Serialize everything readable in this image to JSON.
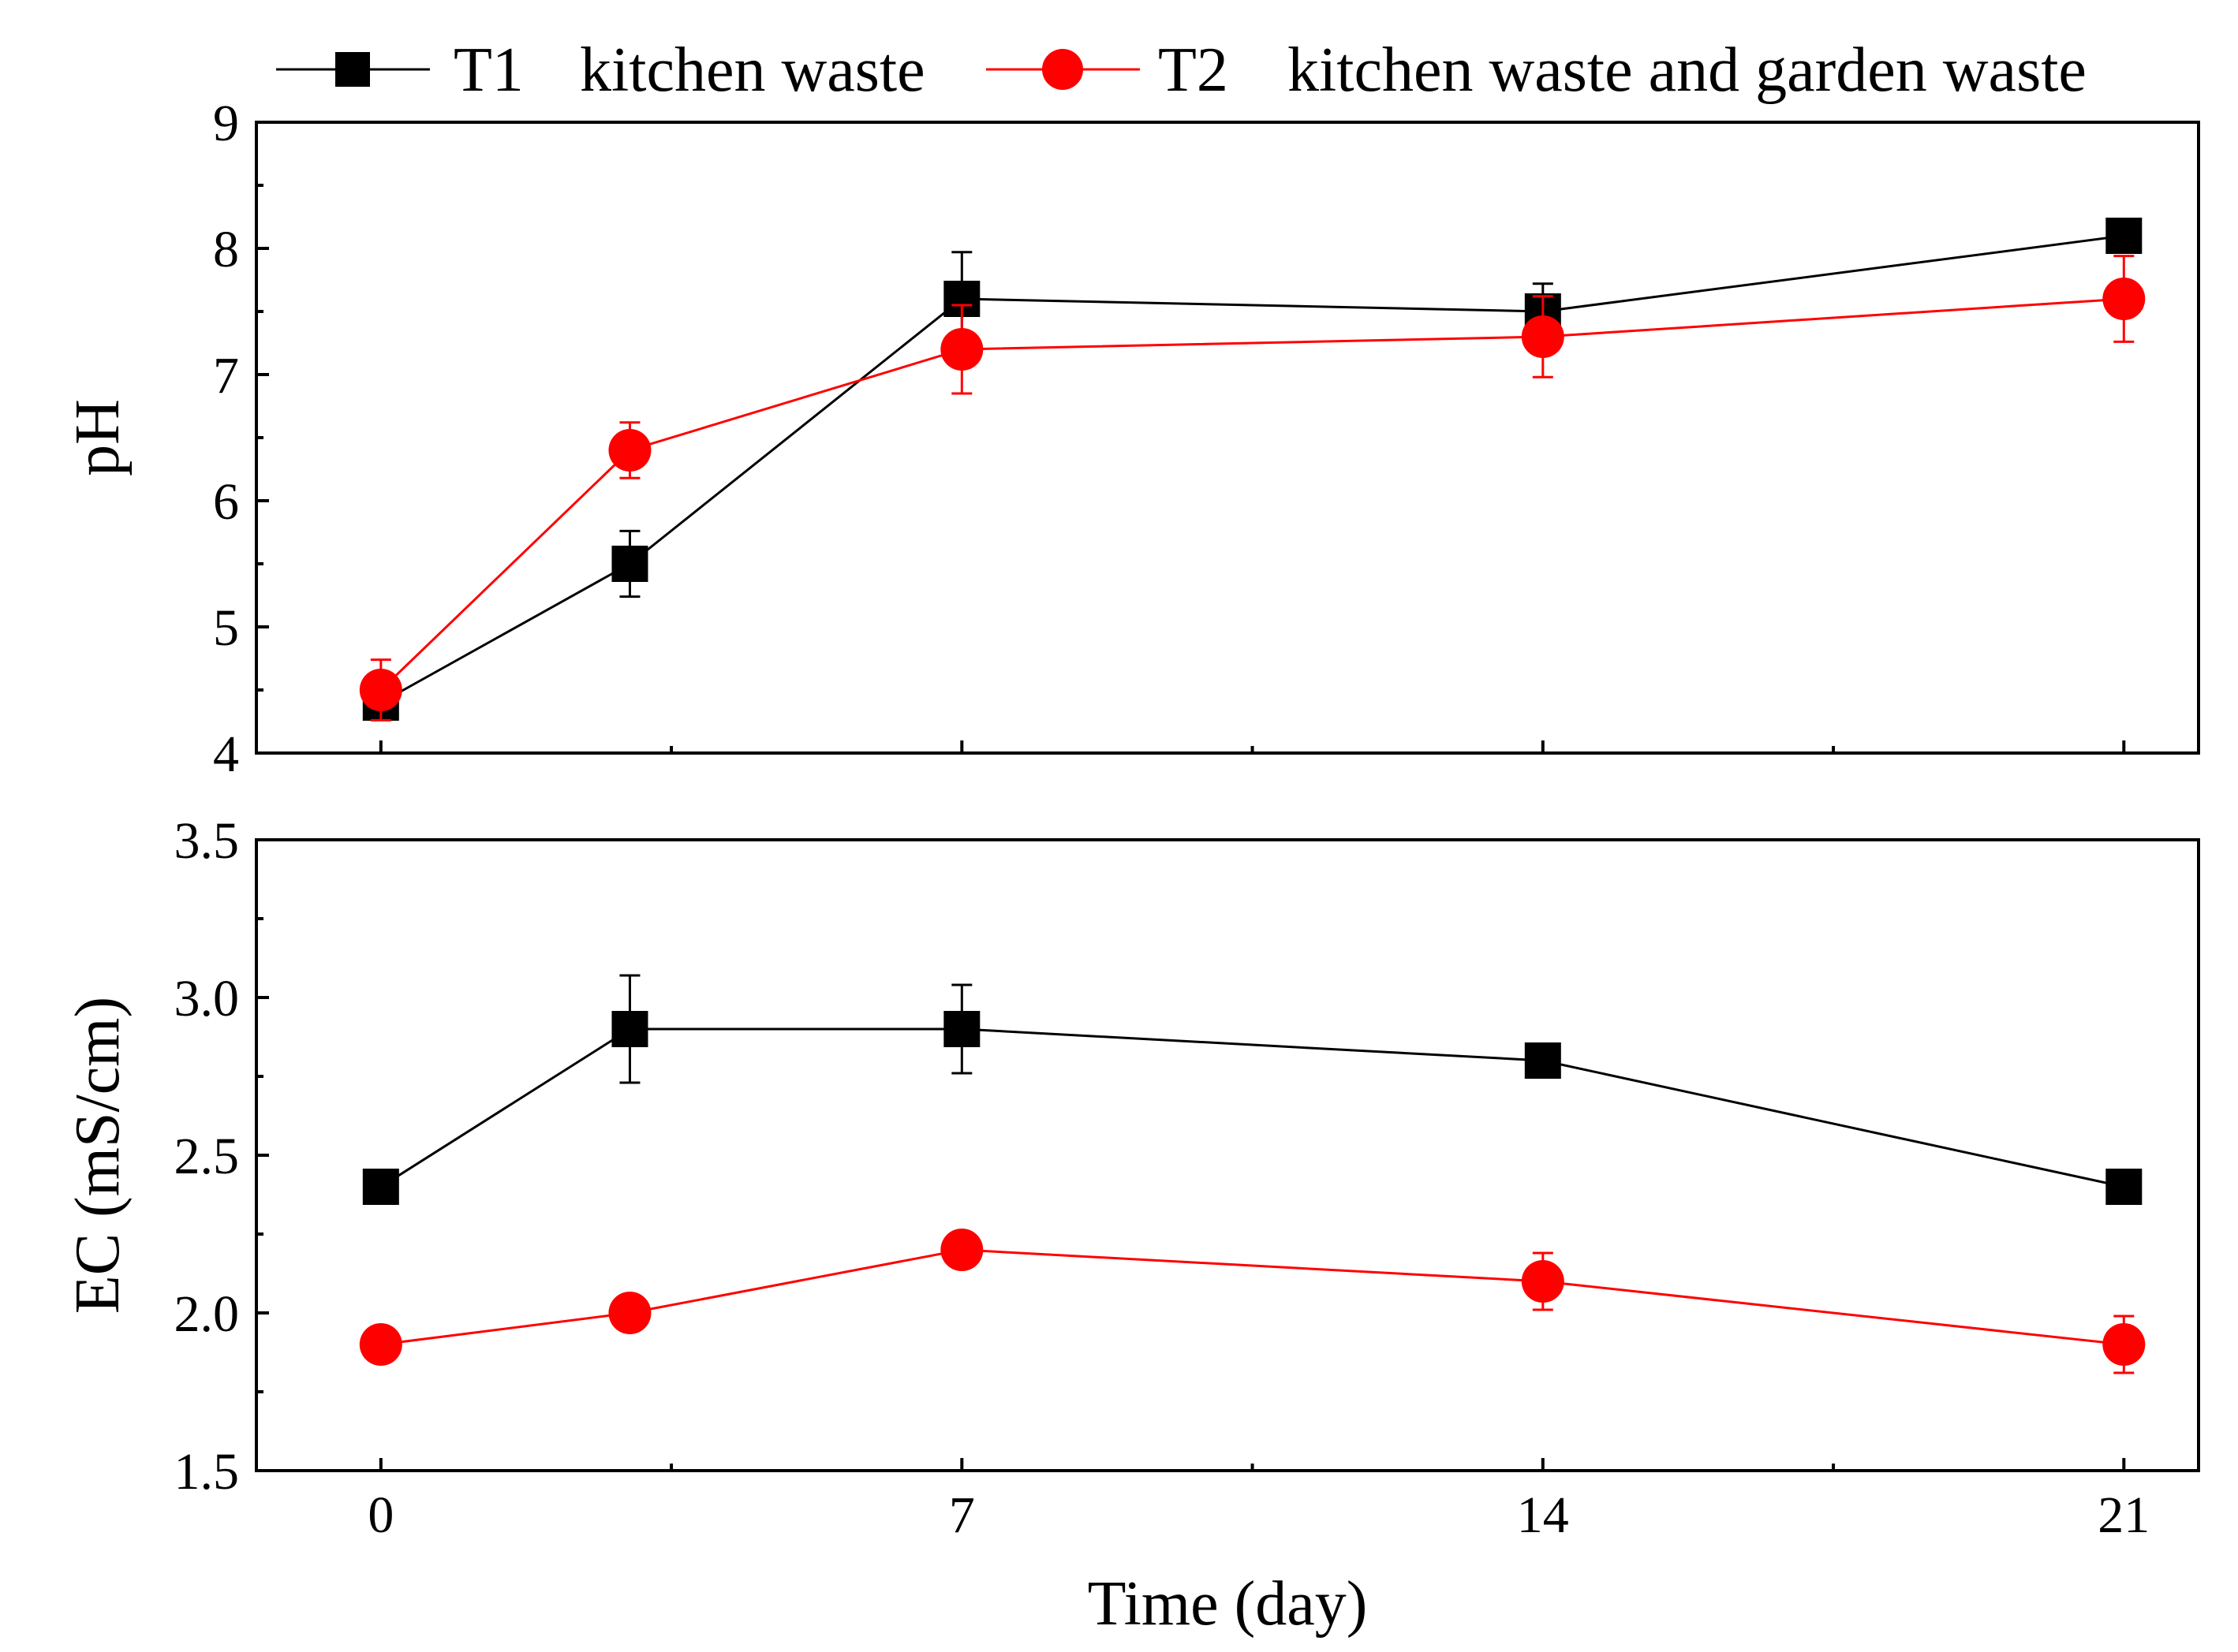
{
  "chart_data": [
    {
      "type": "line",
      "panel": "top",
      "title": "",
      "xlabel": "",
      "ylabel": "pH",
      "xlim": [
        -1.5,
        21.9
      ],
      "ylim": [
        4,
        9
      ],
      "xticks": [
        0,
        7,
        14,
        21
      ],
      "xtick_labels": [],
      "yticks": [
        4,
        5,
        6,
        7,
        8,
        9
      ],
      "ytick_labels": [
        "4",
        "5",
        "6",
        "7",
        "8",
        "9"
      ],
      "series": [
        {
          "name": "T1 kitchen waste",
          "color": "#000000",
          "marker": "square",
          "x": [
            0,
            3,
            7,
            14,
            21
          ],
          "values": [
            4.4,
            5.5,
            7.6,
            7.5,
            8.1
          ],
          "errors": [
            0.1,
            0.26,
            0.37,
            0.22,
            0.1
          ]
        },
        {
          "name": "T2 kitchen waste and garden waste",
          "color": "#ff0000",
          "marker": "circle",
          "x": [
            0,
            3,
            7,
            14,
            21
          ],
          "values": [
            4.5,
            6.4,
            7.2,
            7.3,
            7.6
          ],
          "errors": [
            0.24,
            0.22,
            0.35,
            0.32,
            0.34
          ]
        }
      ]
    },
    {
      "type": "line",
      "panel": "bottom",
      "title": "",
      "xlabel": "Time (day)",
      "ylabel": "EC (mS/cm)",
      "xlim": [
        -1.5,
        21.9
      ],
      "ylim": [
        1.5,
        3.5
      ],
      "xticks": [
        0,
        7,
        14,
        21
      ],
      "xtick_labels": [
        "0",
        "7",
        "14",
        "21"
      ],
      "yticks": [
        1.5,
        2.0,
        2.5,
        3.0,
        3.5
      ],
      "ytick_labels": [
        "1.5",
        "2.0",
        "2.5",
        "3.0",
        "3.5"
      ],
      "series": [
        {
          "name": "T1 kitchen waste",
          "color": "#000000",
          "marker": "square",
          "x": [
            0,
            3,
            7,
            14,
            21
          ],
          "values": [
            2.4,
            2.9,
            2.9,
            2.8,
            2.4
          ],
          "errors": [
            0.0,
            0.17,
            0.14,
            0.0,
            0.0
          ]
        },
        {
          "name": "T2 kitchen waste and garden waste",
          "color": "#ff0000",
          "marker": "circle",
          "x": [
            0,
            3,
            7,
            14,
            21
          ],
          "values": [
            1.9,
            2.0,
            2.2,
            2.1,
            1.9
          ],
          "errors": [
            0.0,
            0.0,
            0.0,
            0.09,
            0.09
          ]
        }
      ]
    }
  ],
  "legend": {
    "items": [
      {
        "id": "t1",
        "label_code": "T1",
        "label_text": "kitchen waste",
        "color": "#000000",
        "marker": "square"
      },
      {
        "id": "t2",
        "label_code": "T2",
        "label_text": "kitchen waste and garden waste",
        "color": "#ff0000",
        "marker": "circle"
      }
    ]
  }
}
